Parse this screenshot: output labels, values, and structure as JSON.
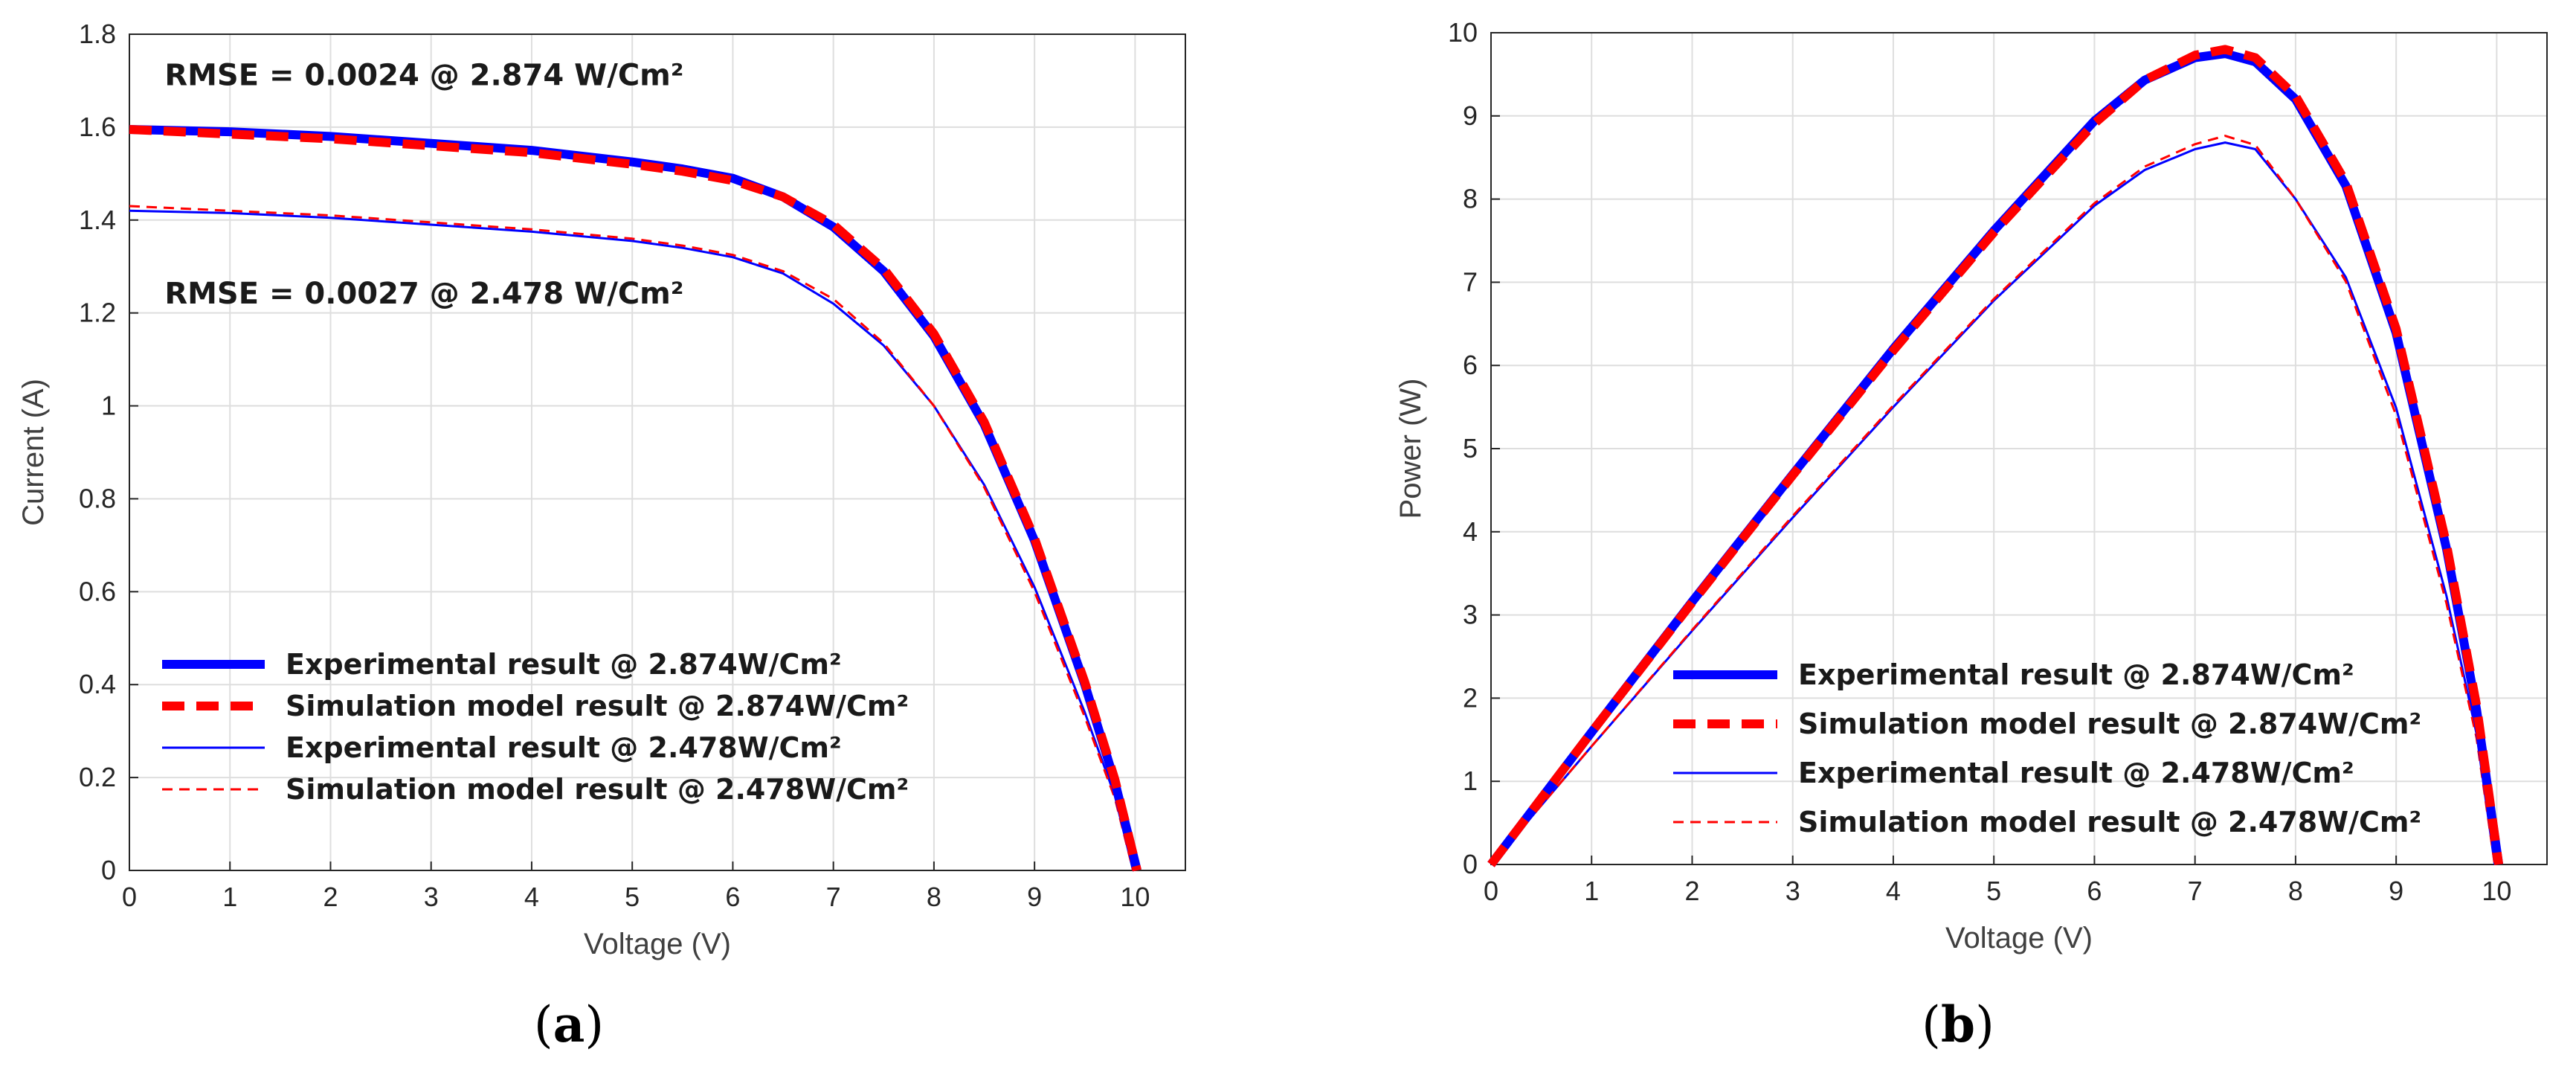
{
  "chart_data": [
    {
      "type": "line",
      "caption": {
        "open": "(",
        "letter": "a",
        "close": ")"
      },
      "xlabel": "Voltage (V)",
      "ylabel": "Current (A)",
      "xlim": [
        0,
        10.5
      ],
      "ylim": [
        0,
        1.8
      ],
      "xticks": [
        0,
        1,
        2,
        3,
        4,
        5,
        6,
        7,
        8,
        9,
        10
      ],
      "yticks": [
        0,
        0.2,
        0.4,
        0.6,
        0.8,
        1,
        1.2,
        1.4,
        1.6,
        1.8
      ],
      "xtick_labels": [
        "0",
        "1",
        "2",
        "3",
        "4",
        "5",
        "6",
        "7",
        "8",
        "9",
        "10"
      ],
      "ytick_labels": [
        "0",
        "0.2",
        "0.4",
        "0.6",
        "0.8",
        "1",
        "1.2",
        "1.4",
        "1.6",
        "1.8"
      ],
      "grid": true,
      "annotations": [
        {
          "text": "RMSE = 0.0024 @ 2.874 W/Cm²",
          "x": 0.35,
          "y": 1.69
        },
        {
          "text": "RMSE = 0.0027 @ 2.478 W/Cm²",
          "x": 0.35,
          "y": 1.22
        }
      ],
      "legend": {
        "position": "bottom-left"
      },
      "series": [
        {
          "name": "Experimental result @ 2.874W/Cm²",
          "color": "#0000ff",
          "style": "solid",
          "weight": "thick",
          "x": [
            0,
            1,
            2,
            3,
            4,
            5,
            5.5,
            6,
            6.5,
            7,
            7.5,
            8,
            8.5,
            9,
            9.5,
            9.8,
            10.02
          ],
          "y": [
            1.595,
            1.59,
            1.58,
            1.565,
            1.55,
            1.525,
            1.51,
            1.49,
            1.45,
            1.385,
            1.29,
            1.15,
            0.96,
            0.71,
            0.4,
            0.19,
            0.0
          ]
        },
        {
          "name": "Simulation model result @ 2.874W/Cm²",
          "color": "#ff0000",
          "style": "dashed",
          "weight": "thick",
          "x": [
            0,
            1,
            2,
            3,
            4,
            5,
            5.5,
            6,
            6.5,
            7,
            7.5,
            8,
            8.5,
            9,
            9.5,
            9.8,
            10.02
          ],
          "y": [
            1.595,
            1.585,
            1.575,
            1.56,
            1.545,
            1.52,
            1.505,
            1.485,
            1.45,
            1.39,
            1.295,
            1.155,
            0.965,
            0.715,
            0.405,
            0.195,
            0.0
          ]
        },
        {
          "name": "Experimental result @ 2.478W/Cm²",
          "color": "#0000ff",
          "style": "solid",
          "weight": "thin",
          "x": [
            0,
            1,
            2,
            3,
            4,
            5,
            5.5,
            6,
            6.5,
            7,
            7.5,
            8,
            8.5,
            9,
            9.5,
            9.8,
            9.98
          ],
          "y": [
            1.42,
            1.415,
            1.405,
            1.39,
            1.375,
            1.355,
            1.34,
            1.32,
            1.285,
            1.22,
            1.13,
            1.0,
            0.83,
            0.61,
            0.34,
            0.16,
            0.0
          ]
        },
        {
          "name": "Simulation model result @ 2.478W/Cm²",
          "color": "#ff0000",
          "style": "dashed",
          "weight": "thin",
          "x": [
            0,
            1,
            2,
            3,
            4,
            5,
            5.5,
            6,
            6.5,
            7,
            7.5,
            8,
            8.5,
            9,
            9.5,
            9.8,
            9.98
          ],
          "y": [
            1.43,
            1.42,
            1.41,
            1.395,
            1.38,
            1.36,
            1.345,
            1.325,
            1.29,
            1.23,
            1.135,
            1.0,
            0.825,
            0.6,
            0.33,
            0.155,
            0.0
          ]
        }
      ]
    },
    {
      "type": "line",
      "caption": {
        "open": "(",
        "letter": "b",
        "close": ")"
      },
      "xlabel": "Voltage (V)",
      "ylabel": "Power (W)",
      "xlim": [
        0,
        10.5
      ],
      "ylim": [
        0,
        10
      ],
      "xticks": [
        0,
        1,
        2,
        3,
        4,
        5,
        6,
        7,
        8,
        9,
        10
      ],
      "yticks": [
        0,
        1,
        2,
        3,
        4,
        5,
        6,
        7,
        8,
        9,
        10
      ],
      "xtick_labels": [
        "0",
        "1",
        "2",
        "3",
        "4",
        "5",
        "6",
        "7",
        "8",
        "9",
        "10"
      ],
      "ytick_labels": [
        "0",
        "1",
        "2",
        "3",
        "4",
        "5",
        "6",
        "7",
        "8",
        "9",
        "10"
      ],
      "grid": true,
      "annotations": [],
      "legend": {
        "position": "bottom-center"
      },
      "series": [
        {
          "name": "Experimental result @ 2.874W/Cm²",
          "color": "#0000ff",
          "style": "solid",
          "weight": "thick",
          "x": [
            0,
            1,
            2,
            3,
            4,
            5,
            6,
            6.5,
            7,
            7.3,
            7.6,
            8,
            8.5,
            9,
            9.5,
            9.8,
            10.02
          ],
          "y": [
            0,
            1.59,
            3.16,
            4.69,
            6.2,
            7.62,
            8.94,
            9.43,
            9.7,
            9.75,
            9.65,
            9.2,
            8.16,
            6.39,
            3.8,
            1.86,
            0
          ]
        },
        {
          "name": "Simulation model result @ 2.874W/Cm²",
          "color": "#ff0000",
          "style": "dashed",
          "weight": "thick",
          "x": [
            0,
            1,
            2,
            3,
            4,
            5,
            6,
            6.5,
            7,
            7.3,
            7.6,
            8,
            8.5,
            9,
            9.5,
            9.8,
            10.02
          ],
          "y": [
            0,
            1.59,
            3.15,
            4.68,
            6.18,
            7.6,
            8.91,
            9.43,
            9.73,
            9.8,
            9.7,
            9.24,
            8.2,
            6.44,
            3.85,
            1.91,
            0
          ]
        },
        {
          "name": "Experimental result @ 2.478W/Cm²",
          "color": "#0000ff",
          "style": "solid",
          "weight": "thin",
          "x": [
            0,
            1,
            2,
            3,
            4,
            5,
            6,
            6.5,
            7,
            7.3,
            7.6,
            8,
            8.5,
            9,
            9.5,
            9.8,
            9.98
          ],
          "y": [
            0,
            1.42,
            2.81,
            4.17,
            5.5,
            6.78,
            7.92,
            8.35,
            8.6,
            8.68,
            8.6,
            8.0,
            7.06,
            5.49,
            3.23,
            1.57,
            0
          ]
        },
        {
          "name": "Simulation model result @ 2.478W/Cm²",
          "color": "#ff0000",
          "style": "dashed",
          "weight": "thin",
          "x": [
            0,
            1,
            2,
            3,
            4,
            5,
            6,
            6.5,
            7,
            7.3,
            7.6,
            8,
            8.5,
            9,
            9.5,
            9.8,
            9.98
          ],
          "y": [
            0,
            1.42,
            2.82,
            4.19,
            5.52,
            6.8,
            7.95,
            8.39,
            8.66,
            8.76,
            8.65,
            8.0,
            7.01,
            5.4,
            3.14,
            1.52,
            0
          ]
        }
      ]
    }
  ]
}
